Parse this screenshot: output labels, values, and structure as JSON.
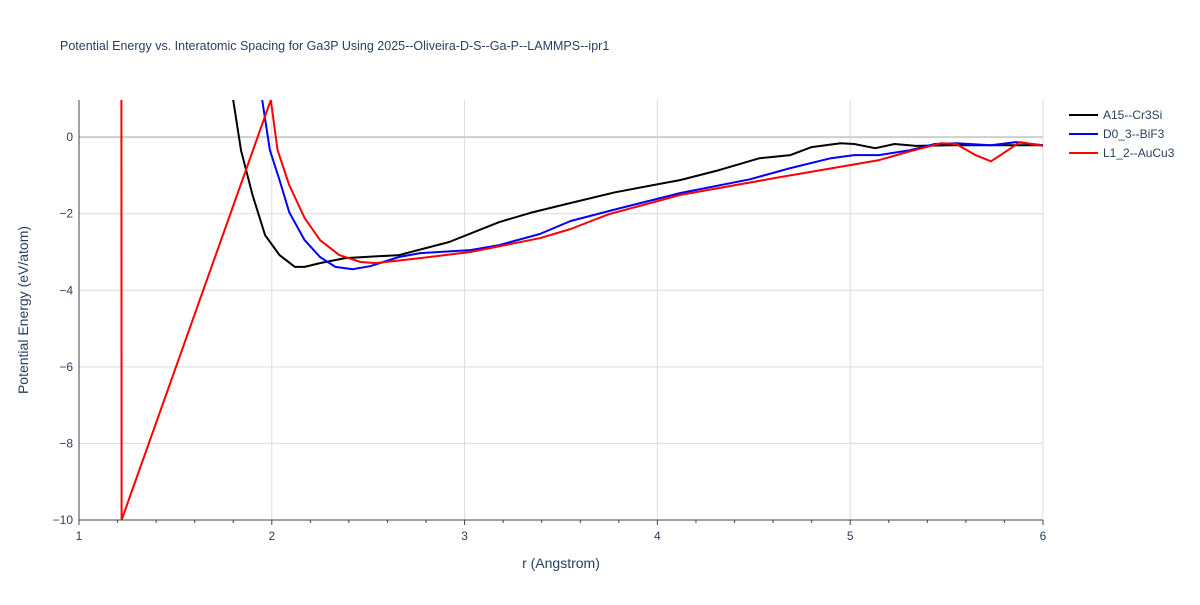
{
  "chart_data": {
    "type": "line",
    "title": "Potential Energy vs. Interatomic Spacing for Ga3P Using 2025--Oliveira-D-S--Ga-P--LAMMPS--ipr1",
    "xlabel": "r (Angstrom)",
    "ylabel": "Potential Energy (eV/atom)",
    "xlim": [
      1,
      6
    ],
    "ylim": [
      -10,
      0.97
    ],
    "xticks": [
      1,
      2,
      3,
      4,
      5,
      6
    ],
    "yticks": [
      0,
      -2,
      -4,
      -6,
      -8,
      -10
    ],
    "ytick_labels": [
      "0",
      "−2",
      "−4",
      "−6",
      "−8",
      "−10"
    ],
    "grid": true,
    "legend_position": "top-right",
    "series": [
      {
        "name": "A15--Cr3Si",
        "color": "#000000",
        "x": [
          1.8,
          1.84,
          1.9,
          1.965,
          2.04,
          2.12,
          2.17,
          2.25,
          2.38,
          2.66,
          2.92,
          3.18,
          3.34,
          3.55,
          3.78,
          4.12,
          4.32,
          4.53,
          4.69,
          4.8,
          4.95,
          5.02,
          5.13,
          5.23,
          5.34,
          5.52,
          6.0
        ],
        "y": [
          0.97,
          -0.34,
          -1.51,
          -2.56,
          -3.08,
          -3.39,
          -3.39,
          -3.29,
          -3.16,
          -3.08,
          -2.74,
          -2.22,
          -1.98,
          -1.72,
          -1.44,
          -1.12,
          -0.86,
          -0.55,
          -0.47,
          -0.26,
          -0.16,
          -0.18,
          -0.29,
          -0.18,
          -0.23,
          -0.21,
          -0.21
        ]
      },
      {
        "name": "D0_3--BiF3",
        "color": "#0000ff",
        "x": [
          1.95,
          1.99,
          2.04,
          2.09,
          2.17,
          2.25,
          2.33,
          2.42,
          2.51,
          2.66,
          2.77,
          3.03,
          3.18,
          3.39,
          3.55,
          3.81,
          4.12,
          4.48,
          4.69,
          4.9,
          5.02,
          5.15,
          5.31,
          5.44,
          5.55,
          5.73,
          5.86,
          6.0
        ],
        "y": [
          0.97,
          -0.34,
          -1.12,
          -1.96,
          -2.69,
          -3.13,
          -3.39,
          -3.45,
          -3.37,
          -3.13,
          -3.03,
          -2.95,
          -2.82,
          -2.53,
          -2.19,
          -1.85,
          -1.46,
          -1.1,
          -0.81,
          -0.55,
          -0.47,
          -0.47,
          -0.34,
          -0.18,
          -0.16,
          -0.21,
          -0.13,
          -0.21
        ]
      },
      {
        "name": "L1_2--AuCu3",
        "color": "#ff0000",
        "x": [
          1.22,
          1.221,
          1.995,
          2.03,
          2.09,
          2.17,
          2.25,
          2.35,
          2.46,
          2.54,
          2.77,
          3.03,
          3.39,
          3.55,
          3.75,
          4.12,
          4.64,
          5.0,
          5.15,
          5.31,
          5.47,
          5.55,
          5.65,
          5.73,
          5.78,
          5.88,
          6.0
        ],
        "y": [
          0.97,
          -10,
          0.97,
          -0.34,
          -1.25,
          -2.11,
          -2.69,
          -3.08,
          -3.26,
          -3.29,
          -3.16,
          -3.0,
          -2.64,
          -2.4,
          -2.01,
          -1.51,
          -1.04,
          -0.73,
          -0.6,
          -0.37,
          -0.16,
          -0.18,
          -0.47,
          -0.63,
          -0.47,
          -0.13,
          -0.23
        ]
      }
    ]
  }
}
